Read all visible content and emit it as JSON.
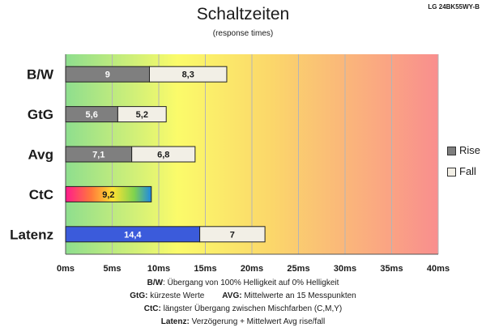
{
  "header": {
    "title": "Schaltzeiten",
    "subtitle": "(response times)",
    "model": "LG 24BK55WY-B"
  },
  "legend": {
    "rise_label": "Rise",
    "fall_label": "Fall"
  },
  "notes": {
    "line1_key": "B/W",
    "line1_text": ":  Übergang von 100% Helligkeit auf 0% Helligkeit",
    "line2_key_a": "GtG:",
    "line2_text_a": " kürzeste  Werte",
    "line2_key_b": "AVG:",
    "line2_text_b": " Mittelwerte  an 15 Messpunkten",
    "line3_key": "CtC:",
    "line3_text": " längster Übergang  zwischen Mischfarben  (C,M,Y)",
    "line4_key": "Latenz:",
    "line4_text": " Verzögerung  + Mittelwert  Avg rise/fall"
  },
  "colors": {
    "rise": "#7f7f7f",
    "fall": "#f2efe6",
    "latency": "#3b5bdb",
    "background_gradient": [
      "#8ede8e",
      "#fbfb6a",
      "#f98e8e"
    ]
  },
  "chart_data": {
    "type": "bar",
    "orientation": "horizontal",
    "stacked": true,
    "title": "Schaltzeiten",
    "subtitle": "(response times)",
    "categories": [
      "B/W",
      "GtG",
      "Avg",
      "CtC",
      "Latenz"
    ],
    "series": [
      {
        "name": "Rise",
        "values": [
          9,
          5.6,
          7.1,
          null,
          null
        ]
      },
      {
        "name": "Fall",
        "values": [
          8.3,
          5.2,
          6.8,
          null,
          7
        ]
      }
    ],
    "special_bars": [
      {
        "category": "CtC",
        "value": 9.2,
        "label": "9,2",
        "style": "rainbow"
      },
      {
        "category": "Latenz",
        "value": 14.4,
        "label": "14,4",
        "style": "blue"
      }
    ],
    "labels": {
      "B/W": [
        "9",
        "8,3"
      ],
      "GtG": [
        "5,6",
        "5,2"
      ],
      "Avg": [
        "7,1",
        "6,8"
      ],
      "Latenz_fall": "7"
    },
    "x_ticks": [
      "0ms",
      "5ms",
      "10ms",
      "15ms",
      "20ms",
      "25ms",
      "30ms",
      "35ms",
      "40ms"
    ],
    "xlim": [
      0,
      40
    ],
    "grid": true,
    "legend_position": "right"
  }
}
